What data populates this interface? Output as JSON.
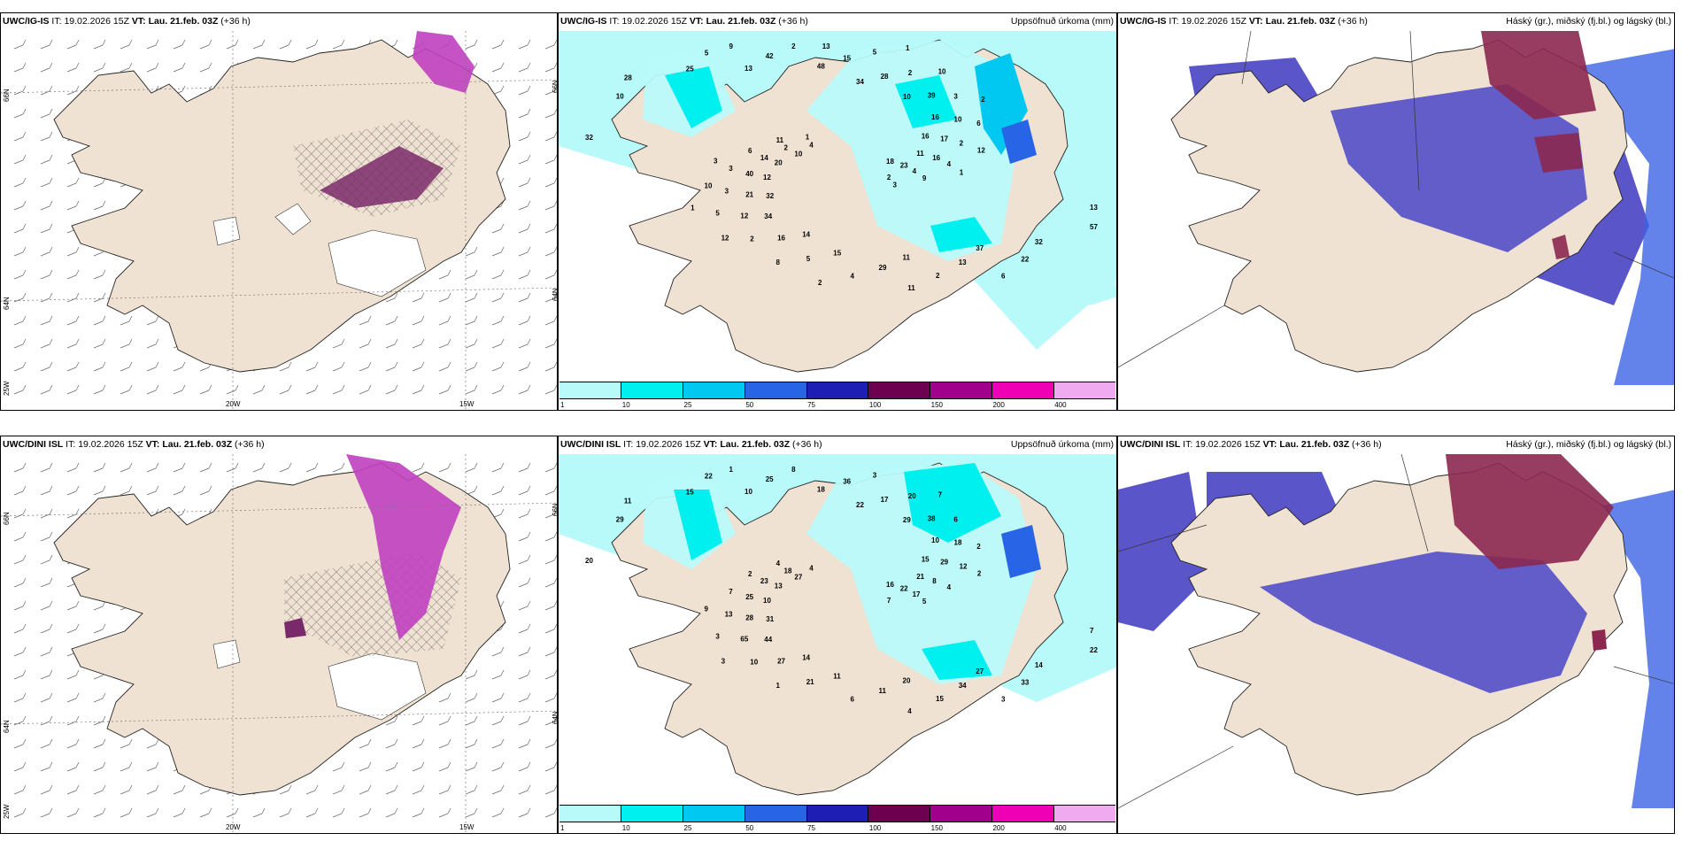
{
  "panels": {
    "p1": {
      "model": "UWC/IG-IS",
      "it_label": "IT:",
      "it": "19.02.2026 15Z",
      "vt_label": "VT:",
      "vt": "Lau. 21.feb. 03Z",
      "lead": "(+36 h)",
      "field": ""
    },
    "p2": {
      "model": "UWC/IG-IS",
      "it_label": "IT:",
      "it": "19.02.2026 15Z",
      "vt_label": "VT:",
      "vt": "Lau. 21.feb. 03Z",
      "lead": "(+36 h)",
      "field": "Uppsöfnuð úrkoma (mm)"
    },
    "p3": {
      "model": "UWC/IG-IS",
      "it_label": "IT:",
      "it": "19.02.2026 15Z",
      "vt_label": "VT:",
      "vt": "Lau. 21.feb. 03Z",
      "lead": "(+36 h)",
      "field": "Háský (gr.), miðský (fj.bl.) og lágský (bl.)"
    },
    "p4": {
      "model": "UWC/DINI ISL",
      "it_label": "IT:",
      "it": "19.02.2026 15Z",
      "vt_label": "VT:",
      "vt": "Lau. 21.feb. 03Z",
      "lead": "(+36 h)",
      "field": ""
    },
    "p5": {
      "model": "UWC/DINI ISL",
      "it_label": "IT:",
      "it": "19.02.2026 15Z",
      "vt_label": "VT:",
      "vt": "Lau. 21.feb. 03Z",
      "lead": "(+36 h)",
      "field": "Uppsöfnuð úrkoma (mm)"
    },
    "p6": {
      "model": "UWC/DINI ISL",
      "it_label": "IT:",
      "it": "19.02.2026 15Z",
      "vt_label": "VT:",
      "vt": "Lau. 21.feb. 03Z",
      "lead": "(+36 h)",
      "field": "Háský (gr.), miðský (fj.bl.) og lágský (bl.)"
    }
  },
  "grid_labels": {
    "lat_66": "66N",
    "lat_64": "64N",
    "lon_25": "25W",
    "lon_20": "20W",
    "lon_15": "15W"
  },
  "colorbar": {
    "ticks": [
      "1",
      "10",
      "25",
      "50",
      "75",
      "100",
      "150",
      "200",
      "400"
    ],
    "colors": [
      "#b8fafa",
      "#00f0f0",
      "#00c8f0",
      "#2864e6",
      "#1e1eb4",
      "#6e0050",
      "#a0008c",
      "#f000b4",
      "#f0aaf0"
    ]
  },
  "precip_top": [
    "18",
    "32",
    "34",
    "37",
    "32",
    "16",
    "14",
    "13",
    "13",
    "12",
    "10",
    "11",
    "10",
    "11",
    "34",
    "48",
    "32",
    "20",
    "16",
    "15",
    "25",
    "23",
    "21",
    "28",
    "13",
    "10",
    "17",
    "16",
    "42",
    "57",
    "40",
    "39",
    "29",
    "28",
    "16",
    "12",
    "15",
    "22",
    "14",
    "10",
    "5",
    "5",
    "4",
    "3",
    "2",
    "2",
    "2",
    "2",
    "2",
    "2",
    "2",
    "3",
    "3",
    "4",
    "4",
    "4",
    "5",
    "5",
    "6",
    "6",
    "6",
    "8",
    "9",
    "9",
    "10",
    "10",
    "11",
    "11",
    "12",
    "12",
    "13",
    "3",
    "3",
    "2",
    "2",
    "1",
    "1",
    "1",
    "1"
  ],
  "precip_bottom": [
    "16",
    "31",
    "22",
    "27",
    "20",
    "15",
    "14",
    "10",
    "7",
    "10",
    "29",
    "20",
    "29",
    "21",
    "44",
    "18",
    "14",
    "13",
    "10",
    "11",
    "15",
    "22",
    "28",
    "17",
    "34",
    "27",
    "29",
    "27",
    "25",
    "22",
    "25",
    "38",
    "11",
    "11",
    "8",
    "65",
    "36",
    "33",
    "23",
    "18",
    "21",
    "22",
    "17",
    "13",
    "20",
    "15",
    "18",
    "12",
    "10",
    "8",
    "7",
    "7",
    "6",
    "6",
    "4",
    "4",
    "3",
    "3",
    "3",
    "2",
    "2",
    "1",
    "1",
    "5",
    "9",
    "7",
    "4",
    "4",
    "2",
    "3"
  ],
  "colors": {
    "land": "#f0e2d2",
    "land_bg": "#ffffff",
    "sea_precip": "#b8fafa",
    "cloud_low": "#5a55c8",
    "cloud_mid": "#3c64e6",
    "cloud_high": "#8c2850"
  }
}
